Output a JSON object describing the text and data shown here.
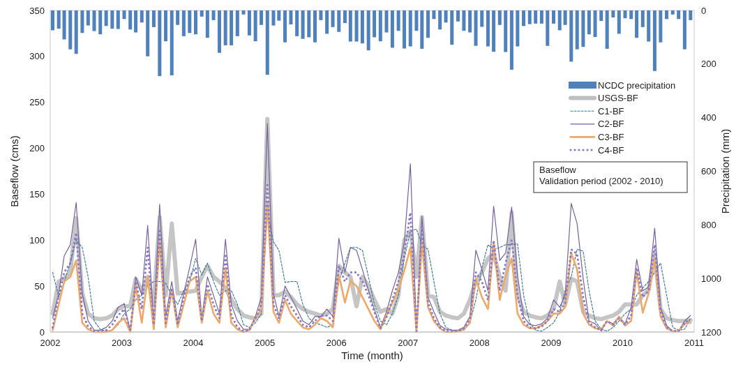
{
  "chart_data": {
    "type": "line",
    "xlabel": "Time (month)",
    "ylabel": "Baseflow (cms)",
    "y2label": "Precipitation (mm)",
    "xlim": [
      "2002-01",
      "2011-01"
    ],
    "xticks": [
      "2002",
      "2003",
      "2004",
      "2005",
      "2006",
      "2007",
      "2008",
      "2009",
      "2010",
      "2011"
    ],
    "ylim": [
      0,
      350
    ],
    "yticks": [
      0,
      50,
      100,
      150,
      200,
      250,
      300,
      350
    ],
    "y2lim": [
      1200,
      0
    ],
    "y2ticks": [
      0,
      200,
      400,
      600,
      800,
      1000,
      1200
    ],
    "legend": "right",
    "annotations": [
      "Baseflow",
      "Validation period (2002 - 2010)"
    ],
    "x": [
      "2002-01",
      "2002-02",
      "2002-03",
      "2002-04",
      "2002-05",
      "2002-06",
      "2002-07",
      "2002-08",
      "2002-09",
      "2002-10",
      "2002-11",
      "2002-12",
      "2003-01",
      "2003-02",
      "2003-03",
      "2003-04",
      "2003-05",
      "2003-06",
      "2003-07",
      "2003-08",
      "2003-09",
      "2003-10",
      "2003-11",
      "2003-12",
      "2004-01",
      "2004-02",
      "2004-03",
      "2004-04",
      "2004-05",
      "2004-06",
      "2004-07",
      "2004-08",
      "2004-09",
      "2004-10",
      "2004-11",
      "2004-12",
      "2005-01",
      "2005-02",
      "2005-03",
      "2005-04",
      "2005-05",
      "2005-06",
      "2005-07",
      "2005-08",
      "2005-09",
      "2005-10",
      "2005-11",
      "2005-12",
      "2006-01",
      "2006-02",
      "2006-03",
      "2006-04",
      "2006-05",
      "2006-06",
      "2006-07",
      "2006-08",
      "2006-09",
      "2006-10",
      "2006-11",
      "2006-12",
      "2007-01",
      "2007-02",
      "2007-03",
      "2007-04",
      "2007-05",
      "2007-06",
      "2007-07",
      "2007-08",
      "2007-09",
      "2007-10",
      "2007-11",
      "2007-12",
      "2008-01",
      "2008-02",
      "2008-03",
      "2008-04",
      "2008-05",
      "2008-06",
      "2008-07",
      "2008-08",
      "2008-09",
      "2008-10",
      "2008-11",
      "2008-12",
      "2009-01",
      "2009-02",
      "2009-03",
      "2009-04",
      "2009-05",
      "2009-06",
      "2009-07",
      "2009-08",
      "2009-09",
      "2009-10",
      "2009-11",
      "2009-12",
      "2010-01",
      "2010-02",
      "2010-03",
      "2010-04",
      "2010-05",
      "2010-06",
      "2010-07",
      "2010-08",
      "2010-09",
      "2010-10",
      "2010-11",
      "2010-12"
    ],
    "series": [
      {
        "name": "NCDC precipitation",
        "type": "bar",
        "axis": "y2",
        "color": "#4f81bd",
        "values": [
          74,
          68,
          108,
          145,
          162,
          84,
          56,
          77,
          89,
          58,
          68,
          69,
          32,
          71,
          82,
          45,
          171,
          62,
          245,
          115,
          242,
          54,
          96,
          84,
          89,
          23,
          102,
          36,
          158,
          130,
          130,
          96,
          15,
          93,
          115,
          54,
          240,
          56,
          38,
          119,
          52,
          96,
          106,
          100,
          119,
          36,
          87,
          62,
          80,
          47,
          116,
          116,
          123,
          149,
          100,
          115,
          82,
          139,
          76,
          142,
          134,
          76,
          143,
          102,
          32,
          71,
          45,
          128,
          41,
          76,
          82,
          132,
          61,
          134,
          154,
          54,
          155,
          221,
          134,
          58,
          51,
          49,
          49,
          132,
          49,
          74,
          54,
          191,
          145,
          136,
          89,
          99,
          39,
          143,
          26,
          87,
          29,
          32,
          102,
          62,
          116,
          226,
          119,
          32,
          15,
          32,
          145,
          36
        ]
      },
      {
        "name": "USGS-BF",
        "color": "#bfbfbf",
        "line_style": "solid",
        "values": [
          20,
          55,
          58,
          65,
          124,
          42,
          20,
          15,
          14,
          15,
          18,
          25,
          28,
          28,
          58,
          45,
          60,
          30,
          125,
          40,
          118,
          42,
          43,
          44,
          45,
          60,
          72,
          60,
          55,
          48,
          35,
          25,
          18,
          16,
          15,
          20,
          232,
          40,
          40,
          44,
          38,
          30,
          25,
          22,
          20,
          18,
          20,
          25,
          72,
          65,
          60,
          28,
          60,
          50,
          35,
          22,
          25,
          20,
          40,
          100,
          110,
          60,
          125,
          40,
          38,
          22,
          18,
          16,
          15,
          20,
          35,
          55,
          65,
          80,
          85,
          60,
          45,
          130,
          40,
          22,
          18,
          16,
          15,
          18,
          25,
          55,
          30,
          58,
          55,
          22,
          18,
          15,
          14,
          16,
          18,
          22,
          30,
          30,
          30,
          40,
          46,
          85,
          25,
          15,
          13,
          12,
          12,
          13
        ]
      },
      {
        "name": "C1-BF",
        "color": "#31758f",
        "line_style": "dashed",
        "values": [
          65,
          38,
          55,
          75,
          100,
          92,
          60,
          12,
          3,
          1,
          2,
          8,
          20,
          25,
          35,
          40,
          50,
          55,
          55,
          53,
          40,
          30,
          45,
          55,
          80,
          62,
          75,
          55,
          40,
          45,
          45,
          30,
          8,
          5,
          10,
          20,
          130,
          98,
          89,
          54,
          55,
          55,
          30,
          15,
          10,
          8,
          5,
          8,
          55,
          75,
          92,
          92,
          89,
          60,
          30,
          12,
          8,
          20,
          40,
          80,
          110,
          112,
          95,
          90,
          55,
          20,
          5,
          2,
          1,
          2,
          10,
          35,
          70,
          95,
          90,
          92,
          95,
          95,
          96,
          40,
          10,
          2,
          1,
          5,
          10,
          22,
          45,
          60,
          90,
          88,
          45,
          12,
          3,
          1,
          5,
          12,
          20,
          25,
          40,
          48,
          55,
          65,
          75,
          40,
          5,
          2,
          3,
          15
        ]
      },
      {
        "name": "C2-BF",
        "color": "#7462a0",
        "line_style": "solid",
        "values": [
          15,
          42,
          83,
          95,
          141,
          42,
          12,
          2,
          2,
          5,
          12,
          27,
          31,
          0,
          60,
          40,
          116,
          10,
          139,
          17,
          55,
          12,
          42,
          70,
          101,
          15,
          60,
          40,
          20,
          101,
          30,
          12,
          3,
          3,
          17,
          38,
          227,
          42,
          17,
          50,
          38,
          25,
          12,
          8,
          17,
          17,
          25,
          17,
          102,
          65,
          92,
          89,
          68,
          45,
          25,
          5,
          22,
          45,
          65,
          98,
          183,
          2,
          126,
          38,
          22,
          7,
          3,
          2,
          2,
          5,
          17,
          89,
          68,
          45,
          137,
          78,
          86,
          136,
          61,
          17,
          8,
          7,
          9,
          15,
          35,
          27,
          40,
          140,
          118,
          58,
          12,
          9,
          1,
          12,
          9,
          17,
          9,
          27,
          79,
          45,
          49,
          113,
          27,
          7,
          1,
          1,
          12,
          18
        ]
      },
      {
        "name": "C3-BF",
        "color": "#f0a868",
        "line_style": "solid",
        "values": [
          2,
          30,
          55,
          60,
          78,
          10,
          3,
          0,
          0,
          0,
          2,
          10,
          15,
          0,
          50,
          10,
          60,
          3,
          98,
          5,
          45,
          5,
          30,
          55,
          60,
          10,
          45,
          20,
          10,
          70,
          10,
          3,
          0,
          2,
          15,
          25,
          140,
          22,
          10,
          35,
          20,
          12,
          5,
          3,
          8,
          15,
          12,
          5,
          62,
          32,
          56,
          50,
          38,
          25,
          12,
          3,
          18,
          32,
          47,
          67,
          92,
          0,
          97,
          27,
          12,
          4,
          0,
          0,
          1,
          3,
          10,
          58,
          38,
          25,
          97,
          35,
          62,
          80,
          20,
          8,
          4,
          4,
          7,
          12,
          20,
          20,
          27,
          86,
          68,
          20,
          8,
          4,
          3,
          12,
          7,
          17,
          7,
          12,
          66,
          21,
          42,
          80,
          17,
          4,
          1,
          1,
          9,
          10
        ]
      },
      {
        "name": "C4-BF",
        "color": "#8a78c4",
        "line_style": "dotted",
        "values": [
          5,
          40,
          65,
          75,
          108,
          20,
          6,
          1,
          1,
          2,
          8,
          18,
          25,
          2,
          55,
          25,
          92,
          8,
          110,
          10,
          48,
          8,
          38,
          60,
          70,
          12,
          52,
          30,
          15,
          85,
          18,
          5,
          1,
          2,
          15,
          30,
          160,
          30,
          15,
          40,
          28,
          18,
          8,
          5,
          12,
          18,
          18,
          12,
          72,
          55,
          65,
          65,
          55,
          40,
          22,
          4,
          16,
          35,
          55,
          85,
          130,
          1,
          115,
          32,
          15,
          5,
          1,
          1,
          1,
          4,
          14,
          65,
          55,
          35,
          100,
          45,
          75,
          100,
          40,
          12,
          5,
          4,
          6,
          12,
          25,
          22,
          32,
          90,
          85,
          38,
          10,
          5,
          2,
          12,
          8,
          15,
          8,
          18,
          70,
          38,
          45,
          95,
          22,
          5,
          1,
          1,
          10,
          14
        ]
      }
    ]
  }
}
